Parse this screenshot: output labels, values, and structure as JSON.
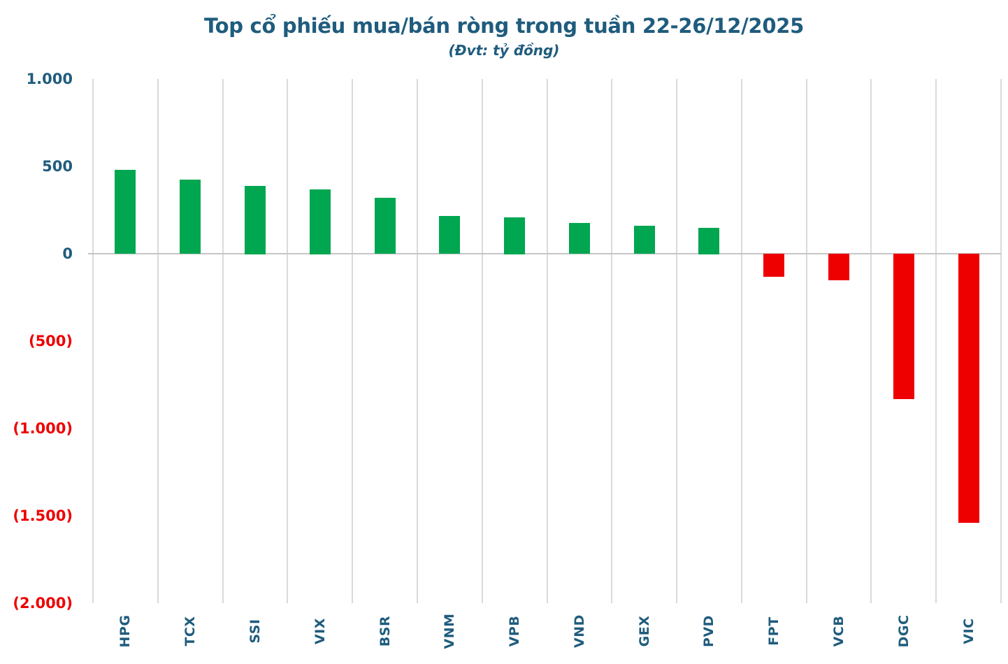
{
  "header": {
    "title": "Top cổ phiếu mua/bán ròng trong tuần 22-26/12/2025",
    "subtitle": "(Đvt: tỷ đồng)"
  },
  "colors": {
    "title_text": "#1F5C7D",
    "positive_bar": "#00A650",
    "negative_bar": "#EE0000",
    "positive_tick_text": "#1F5C7D",
    "negative_tick_text": "#EE0000",
    "gridline": "#DADADA",
    "zero_line": "#C6C6C6",
    "background": "#FFFFFF"
  },
  "chart_data": {
    "type": "bar",
    "title": "Top cổ phiếu mua/bán ròng trong tuần 22-26/12/2025",
    "subtitle": "(Đvt: tỷ đồng)",
    "xlabel": "",
    "ylabel": "",
    "categories": [
      "HPG",
      "TCX",
      "SSI",
      "VIX",
      "BSR",
      "VNM",
      "VPB",
      "VND",
      "GEX",
      "PVD",
      "FPT",
      "VCB",
      "DGC",
      "VIC"
    ],
    "values": [
      480,
      425,
      390,
      370,
      320,
      215,
      210,
      175,
      160,
      150,
      -130,
      -150,
      -830,
      -1540
    ],
    "ylim": [
      -2000,
      1000
    ],
    "yticks": [
      {
        "value": 1000,
        "label": "1.000"
      },
      {
        "value": 500,
        "label": "500"
      },
      {
        "value": 0,
        "label": "0"
      },
      {
        "value": -500,
        "label": "(500)"
      },
      {
        "value": -1000,
        "label": "(1.000)"
      },
      {
        "value": -1500,
        "label": "(1.500)"
      },
      {
        "value": -2000,
        "label": "(2.000)"
      }
    ],
    "grid": "vertical-only",
    "legend": "none",
    "bar_color_positive": "#00A650",
    "bar_color_negative": "#EE0000",
    "x_tick_rotation_degrees": 90
  }
}
